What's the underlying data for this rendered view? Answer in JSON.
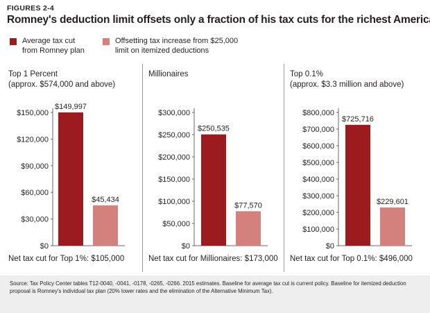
{
  "kicker": "FIGURES 2-4",
  "title": "Romney's deduction limit offsets only a fraction of his tax cuts for the richest Americans",
  "colors": {
    "primary": "#9b1b1f",
    "secondary": "#d4817d",
    "axis": "#666666",
    "divider": "#999999",
    "footer_bg": "#eeeeee"
  },
  "legend": [
    {
      "label_line1": "Average tax cut",
      "label_line2": "from Romney plan",
      "color": "#9b1b1f"
    },
    {
      "label_line1": "Offsetting tax increase from $25,000",
      "label_line2": "limit on itemized deductions",
      "color": "#d4817d"
    }
  ],
  "chart_data": [
    {
      "type": "bar",
      "title_lines": [
        "Top 1 Percent",
        "(approx. $574,000 and above)"
      ],
      "categories": [
        "Average tax cut from Romney plan",
        "Offsetting tax increase from $25,000 limit on itemized deductions"
      ],
      "values": [
        149997,
        45434
      ],
      "value_labels": [
        "$149,997",
        "$45,434"
      ],
      "ylim": [
        0,
        150000
      ],
      "yticks": [
        0,
        30000,
        60000,
        90000,
        120000,
        150000
      ],
      "ytick_labels": [
        "$0",
        "$30,000",
        "$60,000",
        "$90,000",
        "$120,000",
        "$150,000"
      ],
      "footer": "Net tax cut for Top 1%: $105,000"
    },
    {
      "type": "bar",
      "title_lines": [
        "Millionaires"
      ],
      "categories": [
        "Average tax cut from Romney plan",
        "Offsetting tax increase from $25,000 limit on itemized deductions"
      ],
      "values": [
        250535,
        77570
      ],
      "value_labels": [
        "$250,535",
        "$77,570"
      ],
      "ylim": [
        0,
        300000
      ],
      "yticks": [
        0,
        50000,
        100000,
        150000,
        200000,
        250000,
        300000
      ],
      "ytick_labels": [
        "$0",
        "$50,000",
        "$100,000",
        "$150,000",
        "$200,000",
        "$250,000",
        "$300,000"
      ],
      "footer": "Net tax cut for Millionaires: $173,000"
    },
    {
      "type": "bar",
      "title_lines": [
        "Top 0.1%",
        "(approx. $3.3 million and above)"
      ],
      "categories": [
        "Average tax cut from Romney plan",
        "Offsetting tax increase from $25,000 limit on itemized deductions"
      ],
      "values": [
        725716,
        229601
      ],
      "value_labels": [
        "$725,716",
        "$229,601"
      ],
      "ylim": [
        0,
        800000
      ],
      "yticks": [
        0,
        100000,
        200000,
        300000,
        400000,
        500000,
        600000,
        700000,
        800000
      ],
      "ytick_labels": [
        "$0",
        "$100,000",
        "$200,000",
        "$300,000",
        "$400,000",
        "$500,000",
        "$600,000",
        "$700,000",
        "$800,000"
      ],
      "footer": "Net tax cut for Top 0.1%: $496,000"
    }
  ],
  "source_text": "Source: Tax Policy Center tables T12-0040, -0041, -0178, -0265, -0266.  2015 estimates. Baseline for average tax cut is current policy. Baseline for itemized deduction proposal is Romney's individual tax plan (20% lower rates and the elimination of the Alternative Minimum Tax)."
}
